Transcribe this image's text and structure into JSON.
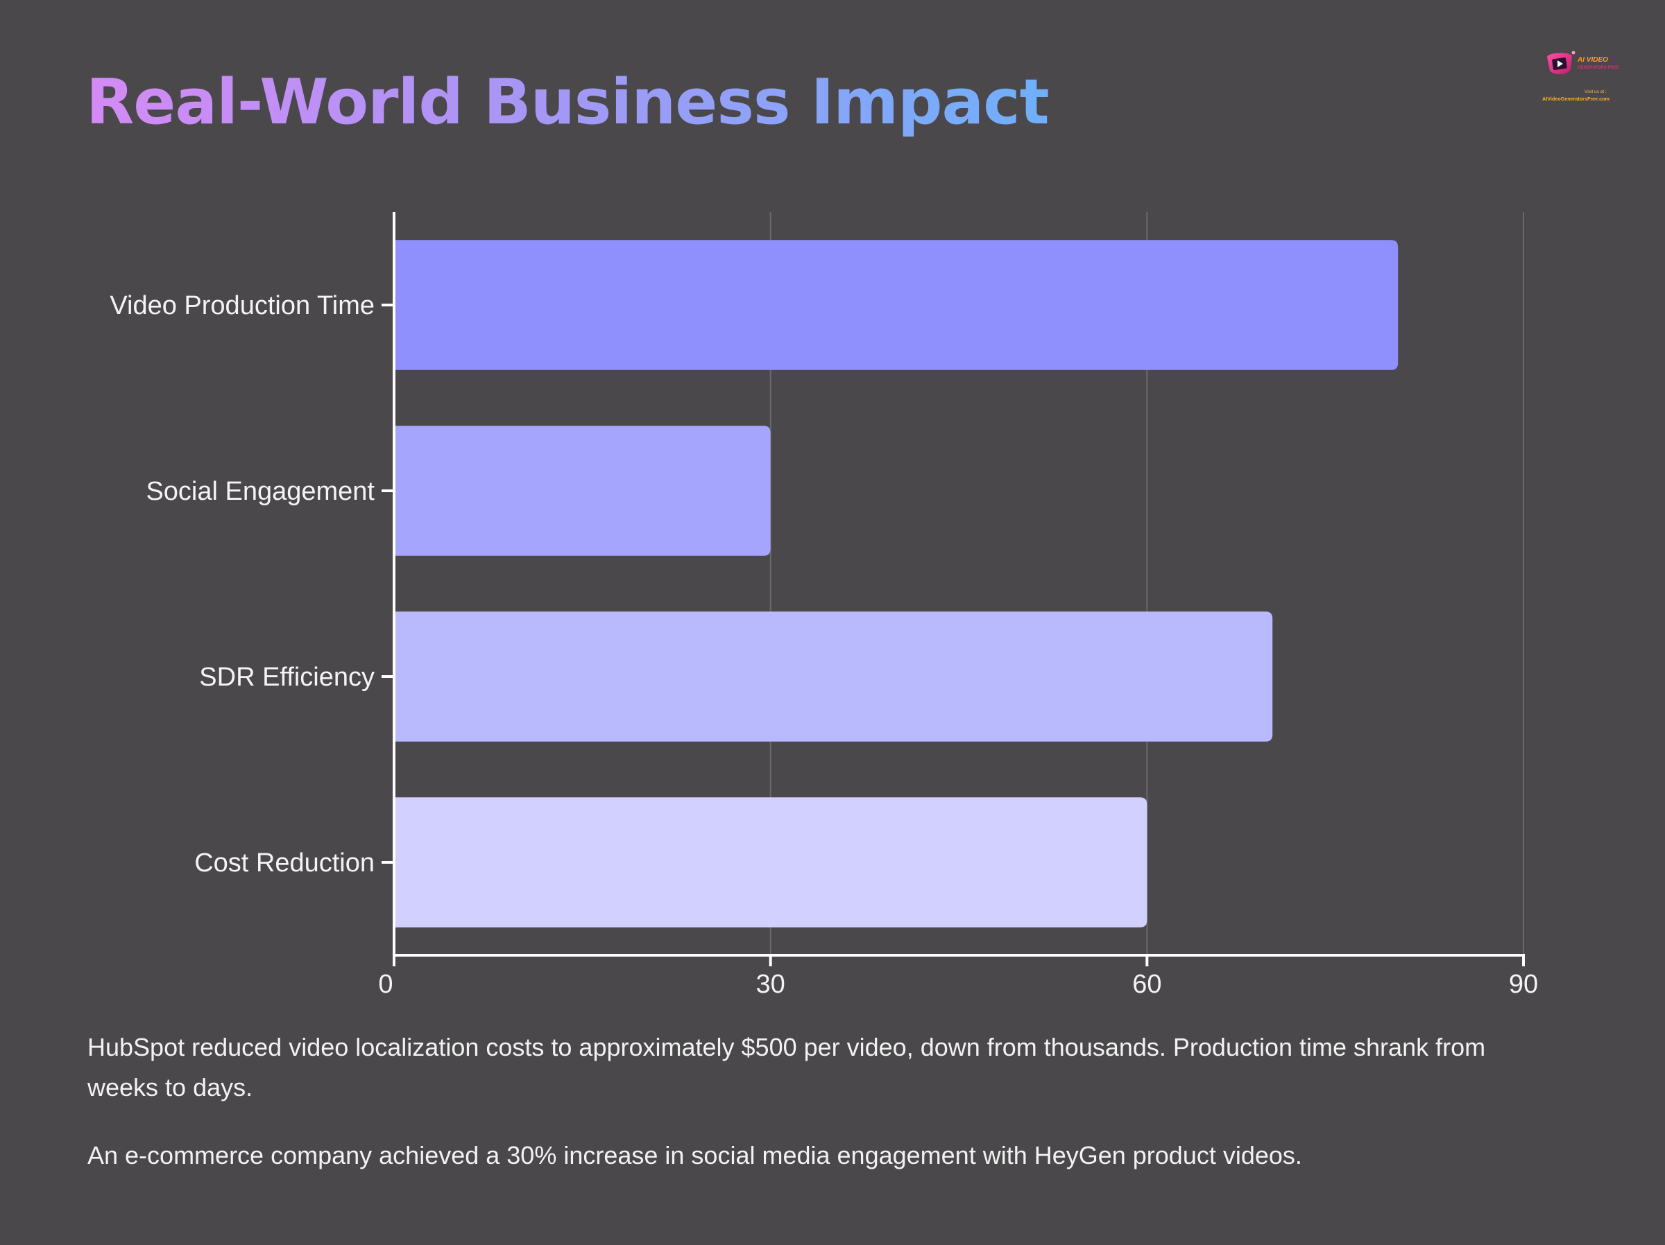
{
  "title": "Real-World Business Impact",
  "logo": {
    "icon": "video-play-icon",
    "brand": "AI VIDEO",
    "tagline": "GENERATORS FREE",
    "visit": "Visit us at :",
    "url": "AIVideoGeneratorsFree.com"
  },
  "chart_data": {
    "type": "bar",
    "orientation": "horizontal",
    "categories": [
      "Video Production Time",
      "Social Engagement",
      "SDR Efficiency",
      "Cost Reduction"
    ],
    "values": [
      80,
      30,
      70,
      60
    ],
    "bar_colors": [
      "#8f8ffe",
      "#a5a5fe",
      "#b9b9fd",
      "#d2d0fe"
    ],
    "xlim": [
      0,
      90
    ],
    "xticks": [
      0,
      30,
      60,
      90
    ],
    "title": "",
    "xlabel": "",
    "ylabel": "",
    "grid": "vertical",
    "legend": "none"
  },
  "captions": [
    "HubSpot reduced video localization costs to approximately $500 per video, down from thousands. Production time shrank from weeks to days.",
    "An e-commerce company achieved a 30% increase in social media engagement with HeyGen product videos."
  ],
  "colors": {
    "background": "#4a484a",
    "axis": "#ffffff",
    "gridline": "#6a686a",
    "text": "#f4f4f4"
  }
}
